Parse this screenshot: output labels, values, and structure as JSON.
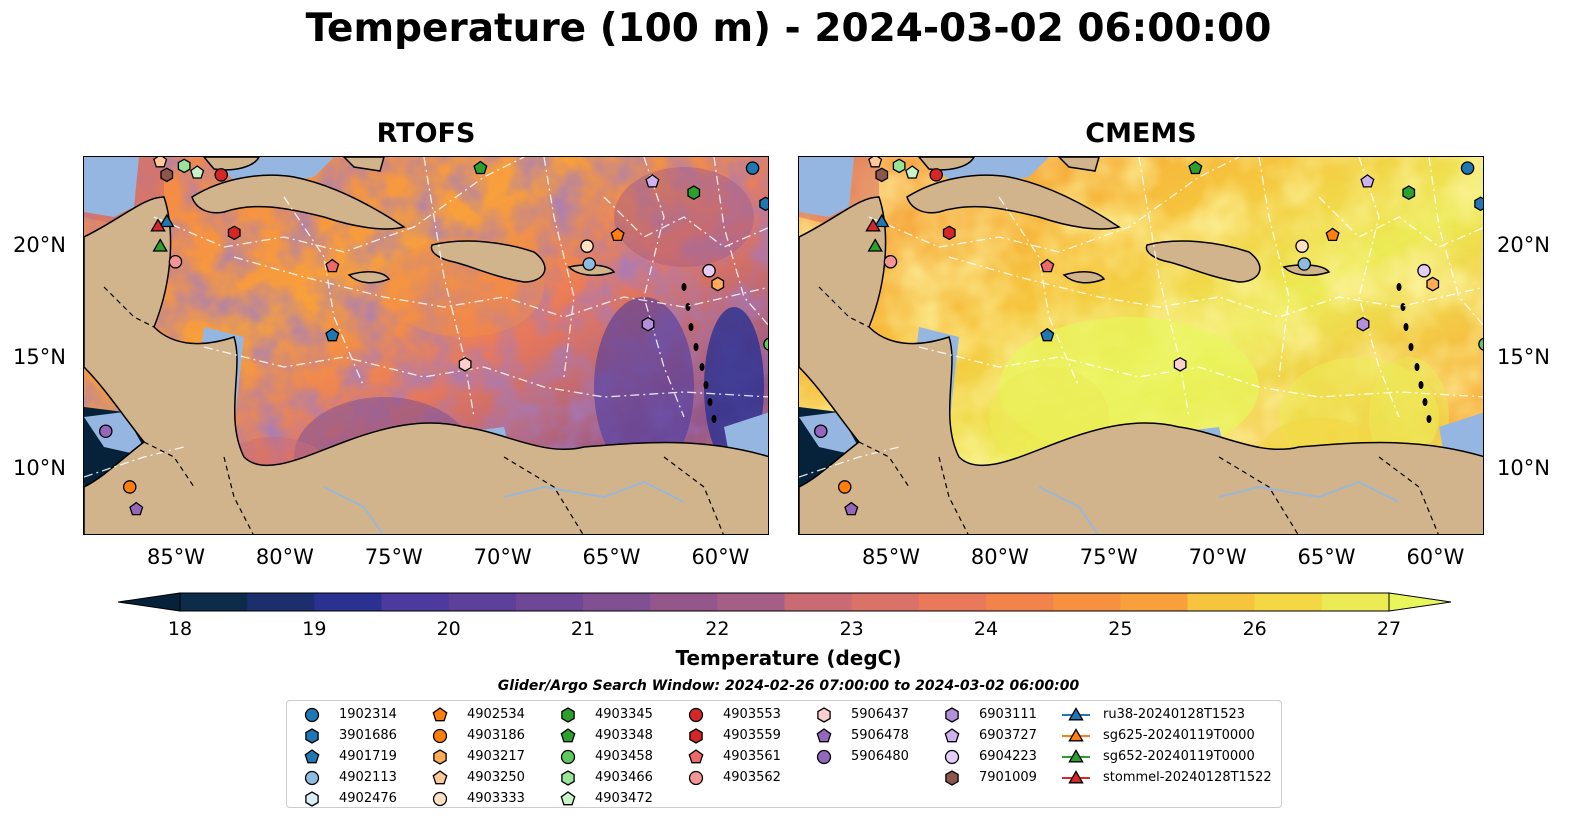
{
  "figure": {
    "title": "Temperature (100 m) - 2024-03-02 06:00:00"
  },
  "panels": [
    {
      "title": "RTOFS",
      "palette": "rtofs"
    },
    {
      "title": "CMEMS",
      "palette": "cmems"
    }
  ],
  "axes": {
    "lon_labels": [
      "85°W",
      "80°W",
      "75°W",
      "70°W",
      "65°W",
      "60°W"
    ],
    "lat_labels": [
      "20°N",
      "15°N",
      "10°N"
    ]
  },
  "colorbar": {
    "label": "Temperature (degC)",
    "min": 18,
    "max": 27,
    "step": 0.5,
    "ticks": [
      "18",
      "19",
      "20",
      "21",
      "22",
      "23",
      "24",
      "25",
      "26",
      "27"
    ],
    "extend": "both",
    "colors": [
      "#05223a",
      "#0c2c4a",
      "#1c2e6b",
      "#2a3190",
      "#3a34a0",
      "#4c3a9e",
      "#5c409a",
      "#6e4896",
      "#815092",
      "#93578c",
      "#a55e86",
      "#b8657e",
      "#ca6b74",
      "#db7268",
      "#e9795a",
      "#f2834b",
      "#f7913f",
      "#f8a03b",
      "#f8b13b",
      "#f6c43d",
      "#f3d844",
      "#eceb55",
      "#e8f65c"
    ]
  },
  "search_window": "Glider/Argo Search Window: 2024-02-26 07:00:00 to 2024-03-02 06:00:00",
  "legend": {
    "columns": [
      [
        {
          "label": "1902314",
          "marker": "circle",
          "color": "#1f77b4"
        },
        {
          "label": "3901686",
          "marker": "hexagon",
          "color": "#1f77b4"
        },
        {
          "label": "4901719",
          "marker": "pentagon",
          "color": "#1f77b4"
        },
        {
          "label": "4902113",
          "marker": "circle",
          "color": "#8fbbdf"
        },
        {
          "label": "4902476",
          "marker": "hexagon",
          "color": "#d9ecf8"
        }
      ],
      [
        {
          "label": "4902534",
          "marker": "pentagon",
          "color": "#ff7f0e"
        },
        {
          "label": "4903186",
          "marker": "circle",
          "color": "#ff7f0e"
        },
        {
          "label": "4903217",
          "marker": "hexagon",
          "color": "#ffab58"
        },
        {
          "label": "4903250",
          "marker": "pentagon",
          "color": "#ffc898"
        },
        {
          "label": "4903333",
          "marker": "circle",
          "color": "#ffe2c6"
        }
      ],
      [
        {
          "label": "4903345",
          "marker": "hexagon",
          "color": "#2ca02c"
        },
        {
          "label": "4903348",
          "marker": "pentagon",
          "color": "#2ca02c"
        },
        {
          "label": "4903458",
          "marker": "circle",
          "color": "#5ec95e"
        },
        {
          "label": "4903466",
          "marker": "hexagon",
          "color": "#98e598"
        },
        {
          "label": "4903472",
          "marker": "pentagon",
          "color": "#c8f5c8"
        }
      ],
      [
        {
          "label": "4903553",
          "marker": "circle",
          "color": "#d62728"
        },
        {
          "label": "4903559",
          "marker": "hexagon",
          "color": "#d62728"
        },
        {
          "label": "4903561",
          "marker": "pentagon",
          "color": "#ee6a6a"
        },
        {
          "label": "4903562",
          "marker": "circle",
          "color": "#f59595"
        }
      ],
      [
        {
          "label": "5906437",
          "marker": "hexagon",
          "color": "#fdd0d0"
        },
        {
          "label": "5906478",
          "marker": "pentagon",
          "color": "#9467bd"
        },
        {
          "label": "5906480",
          "marker": "circle",
          "color": "#9467bd"
        }
      ],
      [
        {
          "label": "6903111",
          "marker": "hexagon",
          "color": "#b48fdb"
        },
        {
          "label": "6903727",
          "marker": "pentagon",
          "color": "#d1b2f0"
        },
        {
          "label": "6904223",
          "marker": "circle",
          "color": "#e5cdfa"
        },
        {
          "label": "7901009",
          "marker": "hexagon",
          "color": "#8c564b"
        }
      ],
      [
        {
          "label": "ru38-20240128T1523",
          "marker": "triangle-line",
          "color": "#1f77b4"
        },
        {
          "label": "sg625-20240119T0000",
          "marker": "triangle-line",
          "color": "#ff7f0e"
        },
        {
          "label": "sg652-20240119T0000",
          "marker": "triangle-line",
          "color": "#2ca02c"
        },
        {
          "label": "stommel-20240128T1522",
          "marker": "triangle-line",
          "color": "#d62728"
        }
      ]
    ]
  },
  "map_markers": [
    {
      "id": "1902314",
      "marker": "circle",
      "color": "#1f77b4",
      "lon": -58.8,
      "lat": 23.5
    },
    {
      "id": "3901686",
      "marker": "hexagon",
      "color": "#1f77b4",
      "lon": -58.2,
      "lat": 21.9
    },
    {
      "id": "4901719",
      "marker": "pentagon",
      "color": "#1f77b4",
      "lon": -78.1,
      "lat": 16.0
    },
    {
      "id": "4902113",
      "marker": "circle",
      "color": "#8fbbdf",
      "lon": -66.3,
      "lat": 19.2
    },
    {
      "id": "4902534",
      "marker": "pentagon",
      "color": "#ff7f0e",
      "lon": -65.0,
      "lat": 20.5
    },
    {
      "id": "4903186",
      "marker": "circle",
      "color": "#ff7f0e",
      "lon": -87.4,
      "lat": 9.2
    },
    {
      "id": "4903217",
      "marker": "hexagon",
      "color": "#ffab58",
      "lon": -60.4,
      "lat": 18.3
    },
    {
      "id": "4903250",
      "marker": "pentagon",
      "color": "#ffc898",
      "lon": -86.0,
      "lat": 23.8
    },
    {
      "id": "4903333",
      "marker": "circle",
      "color": "#ffe2c6",
      "lon": -66.4,
      "lat": 20.0
    },
    {
      "id": "4903345",
      "marker": "hexagon",
      "color": "#2ca02c",
      "lon": -61.5,
      "lat": 22.4
    },
    {
      "id": "4903348",
      "marker": "pentagon",
      "color": "#2ca02c",
      "lon": -71.3,
      "lat": 23.5
    },
    {
      "id": "4903458",
      "marker": "circle",
      "color": "#5ec95e",
      "lon": -58.0,
      "lat": 15.6
    },
    {
      "id": "4903466",
      "marker": "hexagon",
      "color": "#98e598",
      "lon": -84.9,
      "lat": 23.6
    },
    {
      "id": "4903472",
      "marker": "pentagon",
      "color": "#c8f5c8",
      "lon": -84.3,
      "lat": 23.3
    },
    {
      "id": "4903553",
      "marker": "circle",
      "color": "#d62728",
      "lon": -83.2,
      "lat": 23.2
    },
    {
      "id": "4903559",
      "marker": "hexagon",
      "color": "#d62728",
      "lon": -82.6,
      "lat": 20.6
    },
    {
      "id": "4903561",
      "marker": "pentagon",
      "color": "#ee6a6a",
      "lon": -78.1,
      "lat": 19.1
    },
    {
      "id": "4903562",
      "marker": "circle",
      "color": "#f59595",
      "lon": -85.3,
      "lat": 19.3
    },
    {
      "id": "5906437",
      "marker": "hexagon",
      "color": "#fdd0d0",
      "lon": -72.0,
      "lat": 14.7
    },
    {
      "id": "5906478",
      "marker": "pentagon",
      "color": "#9467bd",
      "lon": -87.1,
      "lat": 8.2
    },
    {
      "id": "6903111",
      "marker": "hexagon",
      "color": "#b48fdb",
      "lon": -63.6,
      "lat": 16.5
    },
    {
      "id": "6903727",
      "marker": "pentagon",
      "color": "#d1b2f0",
      "lon": -63.4,
      "lat": 22.9
    },
    {
      "id": "6904223",
      "marker": "circle",
      "color": "#e5cdfa",
      "lon": -60.8,
      "lat": 18.9
    },
    {
      "id": "5906480",
      "marker": "circle",
      "color": "#9467bd",
      "lon": -88.5,
      "lat": 11.7
    },
    {
      "id": "7901009",
      "marker": "hexagon",
      "color": "#8c564b",
      "lon": -85.7,
      "lat": 23.2
    },
    {
      "id": "ru38-20240128T1523",
      "marker": "triangle",
      "color": "#1f77b4",
      "lon": -85.7,
      "lat": 21.1
    },
    {
      "id": "sg652-20240119T0000",
      "marker": "triangle",
      "color": "#2ca02c",
      "lon": -86.0,
      "lat": 20.0
    },
    {
      "id": "stommel-20240128T1522",
      "marker": "triangle",
      "color": "#d62728",
      "lon": -86.1,
      "lat": 20.9
    }
  ]
}
